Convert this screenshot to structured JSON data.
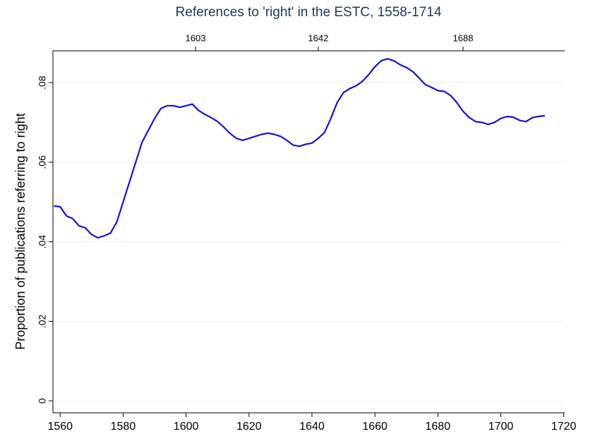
{
  "chart_data": {
    "type": "line",
    "title": "References to 'right' in the ESTC, 1558-1714",
    "y_label": "Proportion of publications referring to right",
    "x": [
      1558,
      1560,
      1562,
      1564,
      1566,
      1568,
      1570,
      1572,
      1574,
      1576,
      1578,
      1580,
      1582,
      1584,
      1586,
      1588,
      1590,
      1592,
      1594,
      1596,
      1598,
      1600,
      1602,
      1604,
      1606,
      1608,
      1610,
      1612,
      1614,
      1616,
      1618,
      1620,
      1622,
      1624,
      1626,
      1628,
      1630,
      1632,
      1634,
      1636,
      1638,
      1640,
      1642,
      1644,
      1646,
      1648,
      1650,
      1652,
      1654,
      1656,
      1658,
      1660,
      1662,
      1664,
      1666,
      1668,
      1670,
      1672,
      1674,
      1676,
      1678,
      1680,
      1682,
      1684,
      1686,
      1688,
      1690,
      1692,
      1694,
      1696,
      1698,
      1700,
      1702,
      1704,
      1706,
      1708,
      1710,
      1712,
      1714
    ],
    "series": [
      {
        "name": "right",
        "color": "#1414d2",
        "values": [
          0.049,
          0.0488,
          0.0465,
          0.0458,
          0.044,
          0.0435,
          0.0418,
          0.041,
          0.0415,
          0.0422,
          0.045,
          0.05,
          0.055,
          0.06,
          0.065,
          0.068,
          0.071,
          0.0735,
          0.0742,
          0.0742,
          0.0738,
          0.0742,
          0.0746,
          0.073,
          0.072,
          0.0712,
          0.0702,
          0.0688,
          0.0672,
          0.066,
          0.0655,
          0.066,
          0.0665,
          0.067,
          0.0673,
          0.067,
          0.0665,
          0.0655,
          0.0643,
          0.064,
          0.0645,
          0.0648,
          0.066,
          0.0675,
          0.071,
          0.075,
          0.0775,
          0.0785,
          0.0792,
          0.0803,
          0.082,
          0.084,
          0.0855,
          0.086,
          0.0855,
          0.0845,
          0.0838,
          0.0828,
          0.0812,
          0.0795,
          0.0788,
          0.078,
          0.0778,
          0.0768,
          0.075,
          0.0728,
          0.0712,
          0.0702,
          0.07,
          0.0695,
          0.07,
          0.071,
          0.0715,
          0.0713,
          0.0705,
          0.0702,
          0.0712,
          0.0715,
          0.0717
        ]
      }
    ],
    "xlim": [
      1557.7,
      1720.3
    ],
    "xticks": [
      1560,
      1580,
      1600,
      1620,
      1640,
      1660,
      1680,
      1700,
      1720
    ],
    "x2ticks": [
      1603,
      1642,
      1688
    ],
    "ylim": [
      -0.003,
      0.088
    ],
    "yticks": [
      0,
      {
        "value": 0.02,
        "label": ".02"
      },
      {
        "value": 0.04,
        "label": ".04"
      },
      {
        "value": 0.06,
        "label": ".06"
      },
      {
        "value": 0.08,
        "label": ".08"
      }
    ],
    "grid": true
  }
}
